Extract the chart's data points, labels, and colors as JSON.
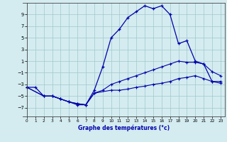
{
  "title": "Graphe des températures (°c)",
  "bg_color": "#d4ecf0",
  "grid_color": "#a0c8cc",
  "line_color": "#0000aa",
  "x_ticks": [
    0,
    1,
    2,
    3,
    4,
    5,
    6,
    7,
    8,
    9,
    10,
    11,
    12,
    13,
    14,
    15,
    16,
    17,
    18,
    19,
    20,
    21,
    22,
    23
  ],
  "y_ticks": [
    -7,
    -5,
    -3,
    -1,
    1,
    3,
    5,
    7,
    9
  ],
  "xlim": [
    -0.5,
    23.5
  ],
  "ylim": [
    -8.5,
    11.0
  ],
  "line1_x": [
    0,
    1,
    2,
    3,
    4,
    5,
    6,
    7,
    8,
    9,
    10,
    11,
    12,
    13,
    14,
    15,
    16,
    17,
    18,
    19,
    20,
    21,
    22,
    23
  ],
  "line1_y": [
    -3.5,
    -3.5,
    -5.0,
    -5.0,
    -5.5,
    -6.0,
    -6.5,
    -6.5,
    -4.0,
    0.0,
    5.0,
    6.5,
    8.5,
    9.5,
    10.5,
    10.0,
    10.5,
    9.0,
    4.0,
    4.5,
    1.0,
    0.5,
    -2.5,
    -2.5
  ],
  "line2_x": [
    0,
    2,
    3,
    4,
    5,
    6,
    7,
    8,
    10,
    11,
    12,
    13,
    14,
    15,
    16,
    17,
    18,
    19,
    20,
    21,
    22,
    23
  ],
  "line2_y": [
    -3.5,
    -5.0,
    -5.0,
    -5.5,
    -6.0,
    -6.3,
    -6.5,
    -4.5,
    -4.0,
    -4.0,
    -3.8,
    -3.5,
    -3.3,
    -3.0,
    -2.8,
    -2.5,
    -2.0,
    -1.8,
    -1.5,
    -2.0,
    -2.5,
    -2.8
  ],
  "line3_x": [
    0,
    2,
    3,
    4,
    5,
    6,
    7,
    8,
    9,
    10,
    11,
    12,
    13,
    14,
    15,
    16,
    17,
    18,
    19,
    20,
    21,
    22,
    23
  ],
  "line3_y": [
    -3.5,
    -5.0,
    -5.0,
    -5.5,
    -6.0,
    -6.3,
    -6.5,
    -4.5,
    -4.0,
    -3.0,
    -2.5,
    -2.0,
    -1.5,
    -1.0,
    -0.5,
    0.0,
    0.5,
    1.0,
    0.8,
    0.8,
    0.5,
    -0.8,
    -1.5
  ]
}
